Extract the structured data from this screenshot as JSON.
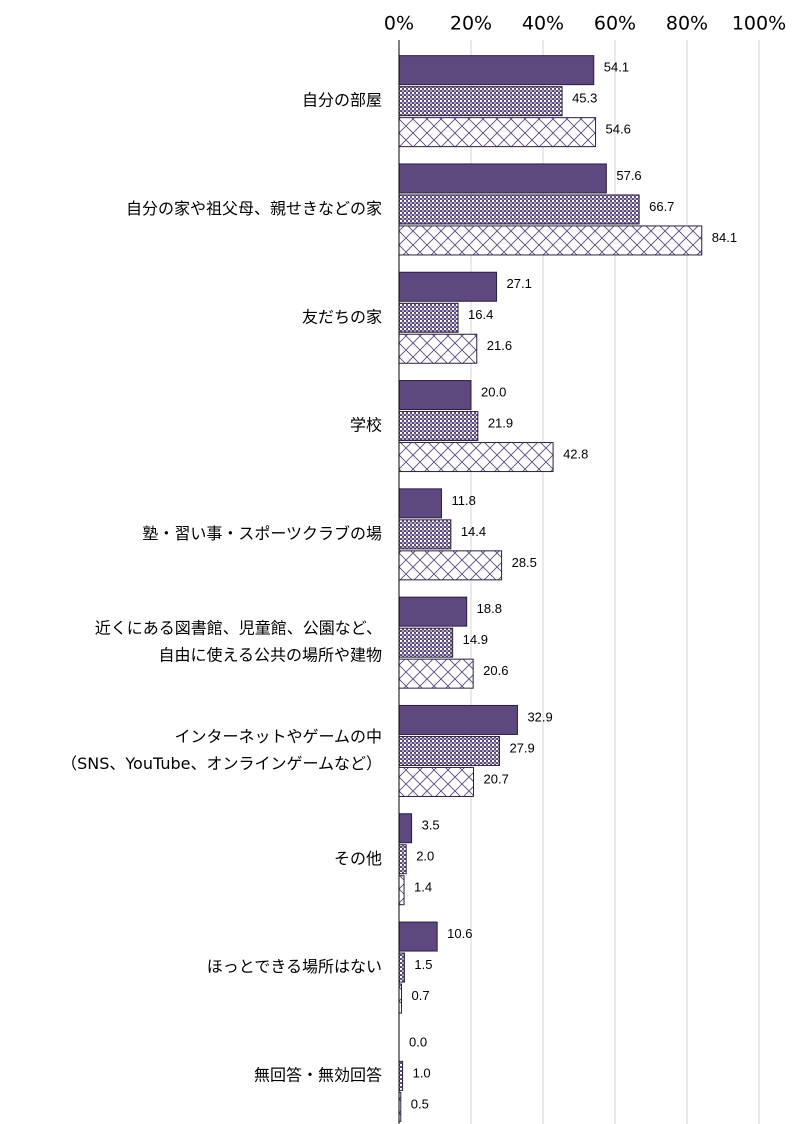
{
  "chart_data": {
    "type": "hbar",
    "categories": [
      "自分の部屋",
      "自分の家や祖父母、親せきなどの家",
      "友だちの家",
      "学校",
      "塾・習い事・スポーツクラブの場",
      [
        "近くにある図書館、児童館、公園など、",
        "自由に使える公共の場所や建物"
      ],
      [
        "インターネットやゲームの中",
        "（SNS、YouTube、オンラインゲームなど）"
      ],
      "その他",
      "ほっとできる場所はない",
      "無回答・無効回答"
    ],
    "series": [
      {
        "color": "#5e4880",
        "pattern": "solid",
        "values": [
          54.1,
          57.6,
          27.1,
          20.0,
          11.8,
          18.8,
          32.9,
          3.5,
          10.6,
          0.0
        ],
        "value_labels": [
          "54.1",
          "57.6",
          "27.1",
          "20.0",
          "11.8",
          "18.8",
          "32.9",
          "3.5",
          "10.6",
          "0.0"
        ]
      },
      {
        "color": "#5e4880",
        "pattern": "dots",
        "values": [
          45.3,
          66.7,
          16.4,
          21.9,
          14.4,
          14.9,
          27.9,
          2.0,
          1.5,
          1.0
        ],
        "value_labels": [
          "45.3",
          "66.7",
          "16.4",
          "21.9",
          "14.4",
          "14.9",
          "27.9",
          "2.0",
          "1.5",
          "1.0"
        ]
      },
      {
        "color": "#5e4880",
        "pattern": "cross",
        "values": [
          54.6,
          84.1,
          21.6,
          42.8,
          28.5,
          20.6,
          20.7,
          1.4,
          0.7,
          0.5
        ],
        "value_labels": [
          "54.6",
          "84.1",
          "21.6",
          "42.8",
          "28.5",
          "20.6",
          "20.7",
          "1.4",
          "0.7",
          "0.5"
        ]
      }
    ],
    "xlim": [
      0,
      100
    ],
    "xticks": [
      {
        "value": 0,
        "label": "0%"
      },
      {
        "value": 20,
        "label": "20%"
      },
      {
        "value": 40,
        "label": "40%"
      },
      {
        "value": 60,
        "label": "60%"
      },
      {
        "value": 80,
        "label": "80%"
      },
      {
        "value": 100,
        "label": "100%"
      }
    ],
    "grid": true
  }
}
